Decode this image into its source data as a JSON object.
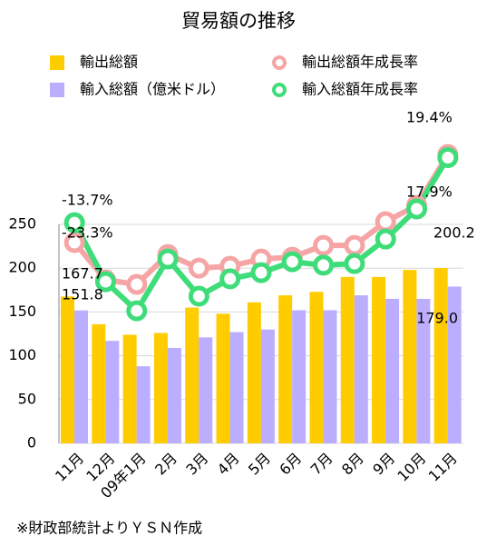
{
  "chart_data": {
    "type": "bar",
    "title": "貿易額の推移",
    "categories": [
      "11月",
      "12月",
      "09年1月",
      "2月",
      "3月",
      "4月",
      "5月",
      "6月",
      "7月",
      "8月",
      "9月",
      "10月",
      "11月"
    ],
    "series": [
      {
        "name": "輸出総額",
        "type": "bar",
        "color": "#ffcc00",
        "values": [
          167.7,
          136,
          124,
          126,
          155,
          148,
          161,
          169,
          173,
          190,
          190,
          198,
          200.2
        ],
        "value_labels": [
          "167.7",
          null,
          null,
          null,
          null,
          null,
          null,
          null,
          null,
          null,
          null,
          null,
          "200.2"
        ]
      },
      {
        "name": "輸入総額（億米ドル）",
        "type": "bar",
        "color": "#bcaeff",
        "values": [
          151.8,
          117,
          88,
          109,
          121,
          127,
          130,
          152,
          152,
          169,
          165,
          165,
          179.0
        ],
        "value_labels": [
          "151.8",
          null,
          null,
          null,
          null,
          null,
          null,
          null,
          null,
          null,
          null,
          null,
          "179.0"
        ]
      },
      {
        "name": "輸出総額年成長率",
        "type": "line",
        "axis": "y2",
        "color": "#f5a5a5",
        "values": [
          -23.3,
          -41.4,
          -43.6,
          -29.1,
          -35.7,
          -34.8,
          -31.3,
          -30.4,
          -24.7,
          -24.7,
          -13.2,
          -5.3,
          19.4
        ],
        "value_labels": [
          "-23.3%",
          null,
          null,
          null,
          null,
          null,
          null,
          null,
          null,
          null,
          null,
          null,
          "19.4%"
        ]
      },
      {
        "name": "輸入総額年成長率",
        "type": "line",
        "axis": "y2",
        "color": "#3fdc7a",
        "values": [
          -13.7,
          -42.3,
          -56.4,
          -31.3,
          -49.3,
          -40.9,
          -37.9,
          -32.6,
          -34.3,
          -33.5,
          -21.6,
          -7.0,
          17.9
        ],
        "value_labels": [
          "-13.7%",
          null,
          null,
          null,
          null,
          null,
          null,
          null,
          null,
          null,
          null,
          null,
          "17.9%"
        ]
      }
    ],
    "ylim": [
      0,
      250
    ],
    "yticks": [
      0,
      50,
      100,
      150,
      200,
      250
    ],
    "y2lim": [
      -120.7,
      -14.5
    ],
    "grid": true,
    "note": "※財政部統計よりＹＳＮ作成"
  }
}
